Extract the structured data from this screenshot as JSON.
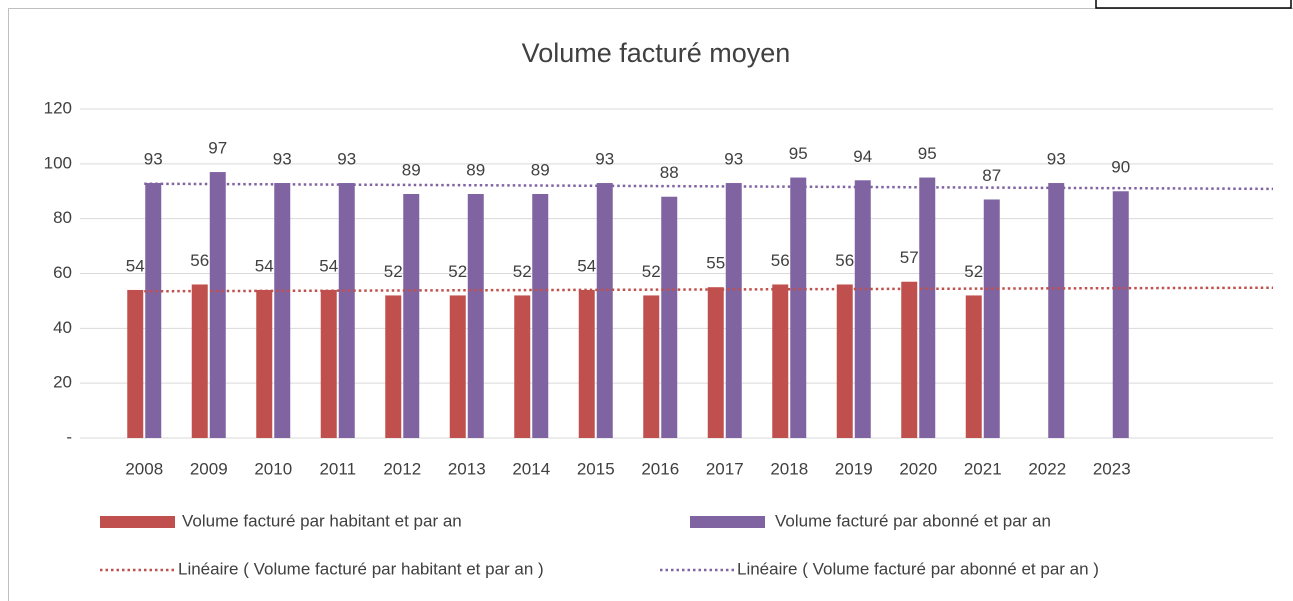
{
  "chart_data": {
    "type": "bar",
    "title": "Volume facturé moyen",
    "categories": [
      "2008",
      "2009",
      "2010",
      "2011",
      "2012",
      "2013",
      "2014",
      "2015",
      "2016",
      "2017",
      "2018",
      "2019",
      "2020",
      "2021",
      "2022",
      "2023"
    ],
    "series": [
      {
        "name": "Volume facturé par habitant et par an",
        "color": "#c0504d",
        "values": [
          54,
          56,
          54,
          54,
          52,
          52,
          52,
          54,
          52,
          55,
          56,
          56,
          57,
          52,
          null,
          null
        ]
      },
      {
        "name": "Volume facturé par abonné et par an",
        "color": "#8064a2",
        "values": [
          93,
          97,
          93,
          93,
          89,
          89,
          89,
          93,
          88,
          93,
          95,
          94,
          95,
          87,
          93,
          90
        ]
      }
    ],
    "trendlines": [
      {
        "name": "Linéaire ( Volume facturé par habitant et par an )",
        "color": "#c0504d"
      },
      {
        "name": "Linéaire ( Volume facturé par abonné et par an )",
        "color": "#8064a2"
      }
    ],
    "ylim": [
      0,
      120
    ],
    "yticks": [
      {
        "value": 0,
        "label": "-"
      },
      20,
      40,
      60,
      80,
      100,
      120
    ],
    "grid": true
  }
}
